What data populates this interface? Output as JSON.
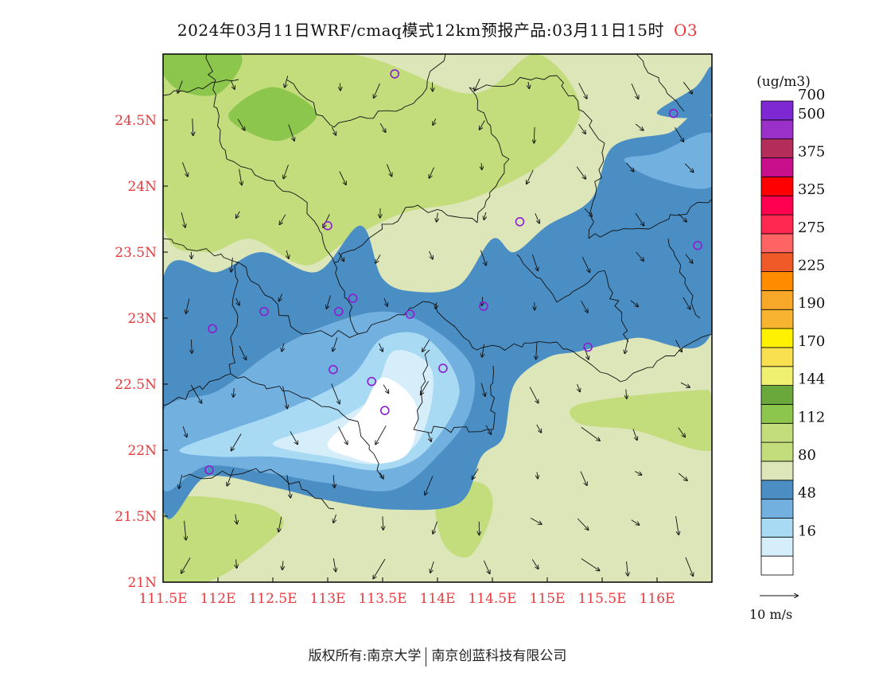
{
  "title": {
    "main": "2024年03月11日WRF/cmaq模式12km预报产品:03月11日15时",
    "species": "O3"
  },
  "map": {
    "lon_range": [
      111.5,
      116.5
    ],
    "lat_range": [
      21.0,
      25.0
    ],
    "lon_ticks": [
      {
        "value": 111.5,
        "label": "111.5E"
      },
      {
        "value": 112.0,
        "label": "112E"
      },
      {
        "value": 112.5,
        "label": "112.5E"
      },
      {
        "value": 113.0,
        "label": "113E"
      },
      {
        "value": 113.5,
        "label": "113.5E"
      },
      {
        "value": 114.0,
        "label": "114E"
      },
      {
        "value": 114.5,
        "label": "114.5E"
      },
      {
        "value": 115.0,
        "label": "115E"
      },
      {
        "value": 115.5,
        "label": "115.5E"
      },
      {
        "value": 116.0,
        "label": "116E"
      }
    ],
    "lat_ticks": [
      {
        "value": 21.0,
        "label": "21N"
      },
      {
        "value": 21.5,
        "label": "21.5N"
      },
      {
        "value": 22.0,
        "label": "22N"
      },
      {
        "value": 22.5,
        "label": "22.5N"
      },
      {
        "value": 23.0,
        "label": "23N"
      },
      {
        "value": 23.5,
        "label": "23.5N"
      },
      {
        "value": 24.0,
        "label": "24N"
      },
      {
        "value": 24.5,
        "label": "24.5N"
      }
    ],
    "base_color": "#dde6b8",
    "regions": [
      {
        "level": "112",
        "color": "#c3dc7c",
        "lonlat": [
          [
            111.5,
            25.0
          ],
          [
            113.2,
            25.0
          ],
          [
            114.3,
            24.7
          ],
          [
            114.9,
            25.0
          ],
          [
            115.3,
            24.6
          ],
          [
            115.0,
            24.2
          ],
          [
            114.3,
            23.9
          ],
          [
            113.7,
            23.8
          ],
          [
            113.2,
            23.6
          ],
          [
            112.8,
            23.4
          ],
          [
            112.3,
            23.6
          ],
          [
            111.9,
            23.5
          ],
          [
            111.5,
            23.7
          ]
        ]
      },
      {
        "level": "112",
        "color": "#c3dc7c",
        "lonlat": [
          [
            111.5,
            21.6
          ],
          [
            112.3,
            21.6
          ],
          [
            112.6,
            21.45
          ],
          [
            112.3,
            21.2
          ],
          [
            111.9,
            21.0
          ],
          [
            111.5,
            21.0
          ]
        ]
      },
      {
        "level": "112",
        "color": "#c3dc7c",
        "lonlat": [
          [
            115.3,
            22.35
          ],
          [
            116.3,
            22.45
          ],
          [
            116.5,
            22.4
          ],
          [
            116.5,
            22.0
          ],
          [
            115.8,
            22.15
          ],
          [
            115.3,
            22.2
          ]
        ]
      },
      {
        "level": "112",
        "color": "#c3dc7c",
        "lonlat": [
          [
            114.0,
            21.7
          ],
          [
            114.4,
            21.75
          ],
          [
            114.5,
            21.55
          ],
          [
            114.3,
            21.2
          ],
          [
            114.05,
            21.3
          ]
        ]
      },
      {
        "level": "144",
        "color": "#8cc64c",
        "lonlat": [
          [
            111.5,
            25.0
          ],
          [
            112.2,
            25.0
          ],
          [
            112.0,
            24.7
          ],
          [
            111.6,
            24.75
          ]
        ]
      },
      {
        "level": "144",
        "color": "#8cc64c",
        "lonlat": [
          [
            112.1,
            24.55
          ],
          [
            112.5,
            24.75
          ],
          [
            112.9,
            24.55
          ],
          [
            112.6,
            24.35
          ],
          [
            112.3,
            24.4
          ]
        ]
      },
      {
        "level": "80",
        "color": "#4a8ec4",
        "lonlat": [
          [
            111.5,
            23.3
          ],
          [
            112.0,
            23.35
          ],
          [
            112.4,
            23.5
          ],
          [
            112.9,
            23.35
          ],
          [
            113.3,
            23.7
          ],
          [
            113.5,
            23.3
          ],
          [
            113.8,
            23.2
          ],
          [
            114.2,
            23.25
          ],
          [
            114.5,
            23.6
          ],
          [
            114.7,
            23.5
          ],
          [
            115.0,
            23.7
          ],
          [
            115.4,
            23.9
          ],
          [
            115.6,
            24.3
          ],
          [
            116.1,
            24.4
          ],
          [
            116.5,
            24.5
          ],
          [
            116.5,
            22.9
          ],
          [
            115.8,
            22.85
          ],
          [
            115.3,
            22.75
          ],
          [
            115.0,
            22.7
          ],
          [
            114.7,
            22.5
          ],
          [
            114.6,
            22.1
          ],
          [
            114.4,
            21.95
          ],
          [
            114.2,
            21.6
          ],
          [
            113.6,
            21.55
          ],
          [
            113.0,
            21.62
          ],
          [
            112.5,
            21.72
          ],
          [
            111.9,
            21.8
          ],
          [
            111.5,
            21.55
          ]
        ]
      },
      {
        "level": "80",
        "color": "#4a8ec4",
        "lonlat": [
          [
            116.0,
            24.55
          ],
          [
            116.35,
            24.75
          ],
          [
            116.5,
            24.9
          ],
          [
            116.5,
            24.55
          ]
        ]
      },
      {
        "level": "48",
        "color": "#72b0e0",
        "lonlat": [
          [
            111.5,
            22.3
          ],
          [
            112.0,
            22.45
          ],
          [
            112.5,
            22.75
          ],
          [
            113.0,
            22.95
          ],
          [
            113.5,
            23.05
          ],
          [
            113.9,
            22.95
          ],
          [
            114.3,
            22.65
          ],
          [
            114.3,
            22.3
          ],
          [
            114.05,
            22.0
          ],
          [
            113.6,
            21.7
          ],
          [
            113.0,
            21.75
          ],
          [
            112.5,
            21.82
          ],
          [
            111.9,
            21.88
          ],
          [
            111.5,
            21.7
          ]
        ]
      },
      {
        "level": "48",
        "color": "#72b0e0",
        "lonlat": [
          [
            115.7,
            24.2
          ],
          [
            116.0,
            24.25
          ],
          [
            116.5,
            24.4
          ],
          [
            116.5,
            24.0
          ],
          [
            116.0,
            24.05
          ]
        ]
      },
      {
        "level": "16",
        "color": "#a8daf4",
        "lonlat": [
          [
            111.65,
            22.0
          ],
          [
            112.1,
            22.15
          ],
          [
            112.6,
            22.3
          ],
          [
            113.2,
            22.55
          ],
          [
            113.5,
            22.85
          ],
          [
            113.9,
            22.85
          ],
          [
            114.2,
            22.45
          ],
          [
            113.9,
            22.0
          ],
          [
            113.5,
            21.85
          ],
          [
            113.0,
            21.9
          ],
          [
            112.5,
            21.95
          ],
          [
            112.0,
            21.95
          ]
        ]
      },
      {
        "level": "16",
        "color": "#d6eefa",
        "lonlat": [
          [
            112.5,
            22.05
          ],
          [
            113.0,
            22.2
          ],
          [
            113.4,
            22.4
          ],
          [
            113.6,
            22.75
          ],
          [
            113.95,
            22.6
          ],
          [
            113.85,
            22.1
          ],
          [
            113.5,
            21.9
          ],
          [
            113.0,
            21.95
          ]
        ]
      },
      {
        "level": "0",
        "color": "#ffffff",
        "lonlat": [
          [
            113.0,
            22.05
          ],
          [
            113.3,
            22.3
          ],
          [
            113.5,
            22.55
          ],
          [
            113.8,
            22.35
          ],
          [
            113.75,
            22.0
          ],
          [
            113.5,
            21.9
          ],
          [
            113.2,
            21.95
          ]
        ]
      }
    ]
  },
  "markers": [
    {
      "lon": 113.61,
      "lat": 24.85
    },
    {
      "lon": 116.15,
      "lat": 24.55
    },
    {
      "lon": 113.0,
      "lat": 23.7
    },
    {
      "lon": 114.75,
      "lat": 23.73
    },
    {
      "lon": 116.37,
      "lat": 23.55
    },
    {
      "lon": 112.42,
      "lat": 23.05
    },
    {
      "lon": 113.23,
      "lat": 23.15
    },
    {
      "lon": 113.1,
      "lat": 23.05
    },
    {
      "lon": 113.75,
      "lat": 23.03
    },
    {
      "lon": 114.42,
      "lat": 23.09
    },
    {
      "lon": 111.95,
      "lat": 22.92
    },
    {
      "lon": 115.37,
      "lat": 22.78
    },
    {
      "lon": 113.05,
      "lat": 22.61
    },
    {
      "lon": 114.05,
      "lat": 22.62
    },
    {
      "lon": 113.4,
      "lat": 22.52
    },
    {
      "lon": 113.52,
      "lat": 22.3
    },
    {
      "lon": 111.92,
      "lat": 21.85
    }
  ],
  "legend": {
    "unit": "(ug/m3)",
    "colors": [
      "#ffffff",
      "#d6eefa",
      "#a8daf4",
      "#72b0e0",
      "#4a8ec4",
      "#dde6b8",
      "#c3dc7c",
      "#c3dc7c",
      "#8cc64c",
      "#6aa83c",
      "#f0f070",
      "#f8e050",
      "#fff200",
      "#f8b430",
      "#f8a828",
      "#ff8c00",
      "#f05a28",
      "#ff6464",
      "#ff2850",
      "#ff0050",
      "#ff0000",
      "#c8108c",
      "#b42d5a",
      "#9b30c8",
      "#7d28d2"
    ],
    "labels": [
      {
        "after": 2,
        "text": "16"
      },
      {
        "after": 4,
        "text": "48"
      },
      {
        "after": 6,
        "text": "80"
      },
      {
        "after": 8,
        "text": "112"
      },
      {
        "after": 10,
        "text": "144"
      },
      {
        "after": 12,
        "text": "170"
      },
      {
        "after": 14,
        "text": "190"
      },
      {
        "after": 16,
        "text": "225"
      },
      {
        "after": 18,
        "text": "275"
      },
      {
        "after": 20,
        "text": "325"
      },
      {
        "after": 22,
        "text": "375"
      },
      {
        "after": 24,
        "text": "500"
      },
      {
        "after": 25,
        "text": "700"
      }
    ],
    "wind_ref": "10 m/s"
  },
  "footer": {
    "left": "版权所有:南京大学",
    "right": "南京创蓝科技有限公司"
  }
}
